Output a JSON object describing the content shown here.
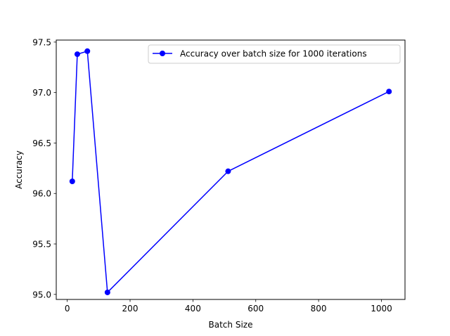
{
  "chart_data": {
    "type": "line",
    "title": "",
    "xlabel": "Batch Size",
    "ylabel": "Accuracy",
    "xlim": [
      -35,
      1075
    ],
    "ylim": [
      94.95,
      97.52
    ],
    "xticks": [
      0,
      200,
      400,
      600,
      800,
      1000
    ],
    "yticks": [
      95.0,
      95.5,
      96.0,
      96.5,
      97.0,
      97.5
    ],
    "xtick_labels": [
      "0",
      "200",
      "400",
      "600",
      "800",
      "1000"
    ],
    "ytick_labels": [
      "95.0",
      "95.5",
      "96.0",
      "96.5",
      "97.0",
      "97.5"
    ],
    "grid": false,
    "legend_position": "upper right",
    "series": [
      {
        "name": "Accuracy over batch size for 1000 iterations",
        "color": "#0000ff",
        "marker": "circle",
        "x": [
          16,
          32,
          64,
          128,
          512,
          1024
        ],
        "y": [
          96.12,
          97.38,
          97.41,
          95.02,
          96.22,
          97.01
        ]
      }
    ]
  }
}
